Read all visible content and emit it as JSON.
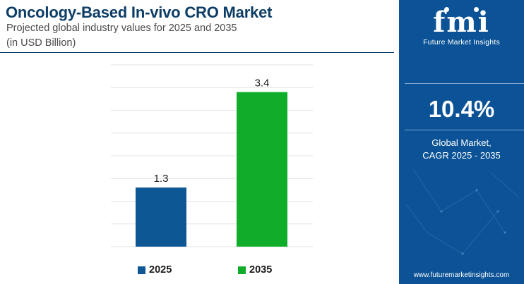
{
  "header": {
    "title": "Oncology-Based In-vivo CRO Market",
    "subtitle_line1": "Projected global industry values for 2025 and 2035",
    "subtitle_line2": "(in USD Billion)"
  },
  "chart_data": {
    "type": "bar",
    "categories": [
      "2025",
      "2035"
    ],
    "values": [
      1.3,
      3.4
    ],
    "data_labels": [
      "1.3",
      "3.4"
    ],
    "colors": [
      "#0d5794",
      "#10ad2b"
    ],
    "ylim": [
      0,
      4
    ],
    "grid": true,
    "legend_position": "bottom"
  },
  "legend": [
    {
      "label": "2025",
      "color": "#0d5794"
    },
    {
      "label": "2035",
      "color": "#10ad2b"
    }
  ],
  "panel": {
    "logo_mark": "fmi",
    "logo_name": "Future Market Insights",
    "cagr_value": "10.4%",
    "cagr_label_line1": "Global Market,",
    "cagr_label_line2": "CAGR 2025 - 2035",
    "website": "www.futuremarketinsights.com",
    "background_color": "#0b5396"
  }
}
